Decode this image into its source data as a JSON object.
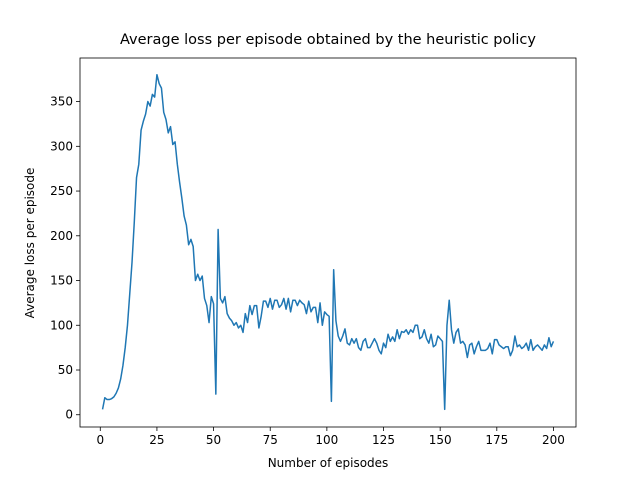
{
  "chart_data": {
    "type": "line",
    "title": "Average loss per episode obtained by the heuristic policy",
    "x_label": "Number of episodes",
    "y_label": "Average loss per episode",
    "xlim": [
      -8.95,
      209.95
    ],
    "ylim": [
      -13.7,
      398.7
    ],
    "xticks": [
      0,
      25,
      50,
      75,
      100,
      125,
      150,
      175,
      200
    ],
    "yticks": [
      0,
      50,
      100,
      150,
      200,
      250,
      300,
      350
    ],
    "x": [
      1,
      2,
      3,
      4,
      5,
      6,
      7,
      8,
      9,
      10,
      11,
      12,
      13,
      14,
      15,
      16,
      17,
      18,
      19,
      20,
      21,
      22,
      23,
      24,
      25,
      26,
      27,
      28,
      29,
      30,
      31,
      32,
      33,
      34,
      35,
      36,
      37,
      38,
      39,
      40,
      41,
      42,
      43,
      44,
      45,
      46,
      47,
      48,
      49,
      50,
      51,
      52,
      53,
      54,
      55,
      56,
      57,
      58,
      59,
      60,
      61,
      62,
      63,
      64,
      65,
      66,
      67,
      68,
      69,
      70,
      71,
      72,
      73,
      74,
      75,
      76,
      77,
      78,
      79,
      80,
      81,
      82,
      83,
      84,
      85,
      86,
      87,
      88,
      89,
      90,
      91,
      92,
      93,
      94,
      95,
      96,
      97,
      98,
      99,
      100,
      101,
      102,
      103,
      104,
      105,
      106,
      107,
      108,
      109,
      110,
      111,
      112,
      113,
      114,
      115,
      116,
      117,
      118,
      119,
      120,
      121,
      122,
      123,
      124,
      125,
      126,
      127,
      128,
      129,
      130,
      131,
      132,
      133,
      134,
      135,
      136,
      137,
      138,
      139,
      140,
      141,
      142,
      143,
      144,
      145,
      146,
      147,
      148,
      149,
      150,
      151,
      152,
      153,
      154,
      155,
      156,
      157,
      158,
      159,
      160,
      161,
      162,
      163,
      164,
      165,
      166,
      167,
      168,
      169,
      170,
      171,
      172,
      173,
      174,
      175,
      176,
      177,
      178,
      179,
      180,
      181,
      182,
      183,
      184,
      185,
      186,
      187,
      188,
      189,
      190,
      191,
      192,
      193,
      194,
      195,
      196,
      197,
      198,
      199,
      200
    ],
    "series": [
      {
        "color": "#1f77b4",
        "values": [
          6,
          19,
          17,
          17,
          18,
          20,
          24,
          30,
          40,
          55,
          75,
          100,
          135,
          170,
          215,
          265,
          280,
          318,
          328,
          336,
          350,
          345,
          358,
          355,
          380,
          370,
          365,
          338,
          330,
          315,
          322,
          302,
          305,
          280,
          260,
          242,
          222,
          212,
          190,
          196,
          188,
          150,
          157,
          150,
          155,
          130,
          122,
          103,
          132,
          124,
          23,
          207,
          130,
          125,
          132,
          113,
          108,
          105,
          100,
          103,
          97,
          100,
          92,
          113,
          103,
          122,
          112,
          122,
          122,
          97,
          110,
          127,
          127,
          120,
          130,
          118,
          128,
          128,
          120,
          123,
          130,
          118,
          130,
          115,
          128,
          128,
          122,
          128,
          125,
          123,
          113,
          127,
          115,
          120,
          120,
          103,
          125,
          100,
          115,
          112,
          110,
          15,
          162,
          105,
          88,
          82,
          88,
          96,
          80,
          78,
          85,
          80,
          85,
          75,
          72,
          82,
          85,
          75,
          75,
          80,
          85,
          80,
          72,
          68,
          80,
          75,
          90,
          82,
          87,
          82,
          95,
          85,
          93,
          92,
          95,
          90,
          95,
          92,
          100,
          100,
          85,
          87,
          95,
          85,
          80,
          90,
          76,
          78,
          88,
          85,
          82,
          6,
          100,
          128,
          95,
          80,
          92,
          96,
          80,
          82,
          78,
          64,
          78,
          80,
          68,
          76,
          82,
          72,
          72,
          72,
          74,
          80,
          68,
          84,
          84,
          78,
          76,
          74,
          76,
          76,
          66,
          72,
          88,
          76,
          78,
          74,
          76,
          80,
          72,
          84,
          72,
          76,
          78,
          75,
          72,
          78,
          74,
          86,
          76,
          82
        ]
      }
    ]
  }
}
